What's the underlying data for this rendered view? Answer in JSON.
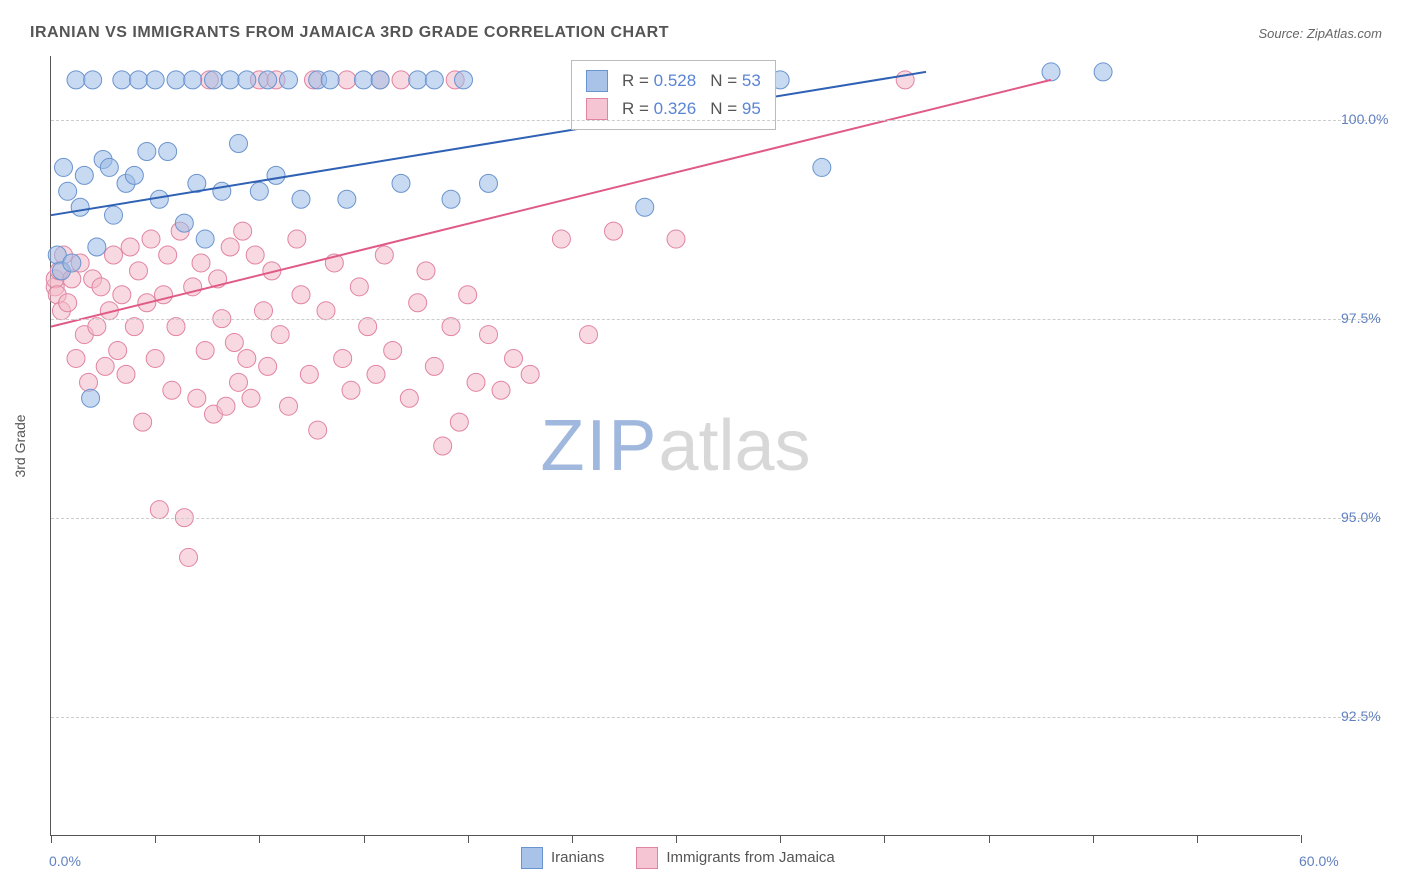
{
  "title": "IRANIAN VS IMMIGRANTS FROM JAMAICA 3RD GRADE CORRELATION CHART",
  "source_label": "Source: ",
  "source_value": "ZipAtlas.com",
  "y_axis_title": "3rd Grade",
  "watermark_part1": "ZIP",
  "watermark_part2": "atlas",
  "chart": {
    "type": "scatter",
    "background_color": "#ffffff",
    "grid_color": "#cccccc",
    "axis_color": "#555555",
    "xlim": [
      0,
      60
    ],
    "ylim": [
      91.0,
      100.8
    ],
    "x_ticks": [
      0,
      5,
      10,
      15,
      20,
      25,
      30,
      35,
      40,
      45,
      50,
      55,
      60
    ],
    "x_tick_labels": {
      "0": "0.0%",
      "60": "60.0%"
    },
    "y_gridlines": [
      92.5,
      95.0,
      97.5,
      100.0
    ],
    "y_tick_labels": {
      "92.5": "92.5%",
      "95.0": "95.0%",
      "97.5": "97.5%",
      "100.0": "100.0%"
    },
    "marker_radius": 9,
    "marker_opacity": 0.55,
    "line_width": 2,
    "label_fontsize": 14,
    "label_color": "#6080c0",
    "series": [
      {
        "name": "Iranians",
        "color_fill": "#9bbbe6",
        "color_stroke": "#6a94cf",
        "line_color": "#2f61b5",
        "swatch_fill": "#a8c2e8",
        "swatch_border": "#6a94cf",
        "R": "0.528",
        "N": "53",
        "trend": {
          "x1": 0,
          "y1": 98.8,
          "x2": 42,
          "y2": 100.6
        },
        "points": [
          [
            0.3,
            98.3
          ],
          [
            0.5,
            98.1
          ],
          [
            0.6,
            99.4
          ],
          [
            0.8,
            99.1
          ],
          [
            1.0,
            98.2
          ],
          [
            1.2,
            100.5
          ],
          [
            1.4,
            98.9
          ],
          [
            1.6,
            99.3
          ],
          [
            1.9,
            96.5
          ],
          [
            2.0,
            100.5
          ],
          [
            2.2,
            98.4
          ],
          [
            2.5,
            99.5
          ],
          [
            2.8,
            99.4
          ],
          [
            3.0,
            98.8
          ],
          [
            3.4,
            100.5
          ],
          [
            3.6,
            99.2
          ],
          [
            4.0,
            99.3
          ],
          [
            4.2,
            100.5
          ],
          [
            4.6,
            99.6
          ],
          [
            5.0,
            100.5
          ],
          [
            5.2,
            99.0
          ],
          [
            5.6,
            99.6
          ],
          [
            6.0,
            100.5
          ],
          [
            6.4,
            98.7
          ],
          [
            6.8,
            100.5
          ],
          [
            7.0,
            99.2
          ],
          [
            7.4,
            98.5
          ],
          [
            7.8,
            100.5
          ],
          [
            8.2,
            99.1
          ],
          [
            8.6,
            100.5
          ],
          [
            9.0,
            99.7
          ],
          [
            9.4,
            100.5
          ],
          [
            10.0,
            99.1
          ],
          [
            10.4,
            100.5
          ],
          [
            10.8,
            99.3
          ],
          [
            11.4,
            100.5
          ],
          [
            12.0,
            99.0
          ],
          [
            12.8,
            100.5
          ],
          [
            13.4,
            100.5
          ],
          [
            14.2,
            99.0
          ],
          [
            15.0,
            100.5
          ],
          [
            15.8,
            100.5
          ],
          [
            16.8,
            99.2
          ],
          [
            17.6,
            100.5
          ],
          [
            18.4,
            100.5
          ],
          [
            19.2,
            99.0
          ],
          [
            19.8,
            100.5
          ],
          [
            21.0,
            99.2
          ],
          [
            28.5,
            98.9
          ],
          [
            35.0,
            100.5
          ],
          [
            37.0,
            99.4
          ],
          [
            48.0,
            100.6
          ],
          [
            50.5,
            100.6
          ]
        ]
      },
      {
        "name": "Immigrants from Jamaica",
        "color_fill": "#f3b9c9",
        "color_stroke": "#e184a2",
        "line_color": "#e05a86",
        "swatch_fill": "#f6c5d3",
        "swatch_border": "#e184a2",
        "R": "0.326",
        "N": "95",
        "trend": {
          "x1": 0,
          "y1": 97.4,
          "x2": 48,
          "y2": 100.5
        },
        "points": [
          [
            0.2,
            97.9
          ],
          [
            0.2,
            98.0
          ],
          [
            0.3,
            97.8
          ],
          [
            0.4,
            98.1
          ],
          [
            0.5,
            97.6
          ],
          [
            0.6,
            98.3
          ],
          [
            0.8,
            97.7
          ],
          [
            1.0,
            98.0
          ],
          [
            1.2,
            97.0
          ],
          [
            1.4,
            98.2
          ],
          [
            1.6,
            97.3
          ],
          [
            1.8,
            96.7
          ],
          [
            2.0,
            98.0
          ],
          [
            2.2,
            97.4
          ],
          [
            2.4,
            97.9
          ],
          [
            2.6,
            96.9
          ],
          [
            2.8,
            97.6
          ],
          [
            3.0,
            98.3
          ],
          [
            3.2,
            97.1
          ],
          [
            3.4,
            97.8
          ],
          [
            3.6,
            96.8
          ],
          [
            3.8,
            98.4
          ],
          [
            4.0,
            97.4
          ],
          [
            4.2,
            98.1
          ],
          [
            4.4,
            96.2
          ],
          [
            4.6,
            97.7
          ],
          [
            4.8,
            98.5
          ],
          [
            5.0,
            97.0
          ],
          [
            5.2,
            95.1
          ],
          [
            5.4,
            97.8
          ],
          [
            5.6,
            98.3
          ],
          [
            5.8,
            96.6
          ],
          [
            6.0,
            97.4
          ],
          [
            6.2,
            98.6
          ],
          [
            6.4,
            95.0
          ],
          [
            6.6,
            94.5
          ],
          [
            6.8,
            97.9
          ],
          [
            7.0,
            96.5
          ],
          [
            7.2,
            98.2
          ],
          [
            7.4,
            97.1
          ],
          [
            7.6,
            100.5
          ],
          [
            7.8,
            96.3
          ],
          [
            8.0,
            98.0
          ],
          [
            8.2,
            97.5
          ],
          [
            8.4,
            96.4
          ],
          [
            8.6,
            98.4
          ],
          [
            8.8,
            97.2
          ],
          [
            9.0,
            96.7
          ],
          [
            9.2,
            98.6
          ],
          [
            9.4,
            97.0
          ],
          [
            9.6,
            96.5
          ],
          [
            9.8,
            98.3
          ],
          [
            10.0,
            100.5
          ],
          [
            10.2,
            97.6
          ],
          [
            10.4,
            96.9
          ],
          [
            10.6,
            98.1
          ],
          [
            10.8,
            100.5
          ],
          [
            11.0,
            97.3
          ],
          [
            11.4,
            96.4
          ],
          [
            11.8,
            98.5
          ],
          [
            12.0,
            97.8
          ],
          [
            12.4,
            96.8
          ],
          [
            12.6,
            100.5
          ],
          [
            12.8,
            96.1
          ],
          [
            13.2,
            97.6
          ],
          [
            13.6,
            98.2
          ],
          [
            14.0,
            97.0
          ],
          [
            14.2,
            100.5
          ],
          [
            14.4,
            96.6
          ],
          [
            14.8,
            97.9
          ],
          [
            15.2,
            97.4
          ],
          [
            15.6,
            96.8
          ],
          [
            15.8,
            100.5
          ],
          [
            16.0,
            98.3
          ],
          [
            16.4,
            97.1
          ],
          [
            16.8,
            100.5
          ],
          [
            17.2,
            96.5
          ],
          [
            17.6,
            97.7
          ],
          [
            18.0,
            98.1
          ],
          [
            18.4,
            96.9
          ],
          [
            18.8,
            95.9
          ],
          [
            19.2,
            97.4
          ],
          [
            19.4,
            100.5
          ],
          [
            19.6,
            96.2
          ],
          [
            20.0,
            97.8
          ],
          [
            20.4,
            96.7
          ],
          [
            21.0,
            97.3
          ],
          [
            21.6,
            96.6
          ],
          [
            22.2,
            97.0
          ],
          [
            23.0,
            96.8
          ],
          [
            24.5,
            98.5
          ],
          [
            25.8,
            97.3
          ],
          [
            27.0,
            98.6
          ],
          [
            30.0,
            98.5
          ],
          [
            41.0,
            100.5
          ]
        ]
      }
    ]
  },
  "legend_label_1": "Iranians",
  "legend_label_2": "Immigrants from Jamaica"
}
